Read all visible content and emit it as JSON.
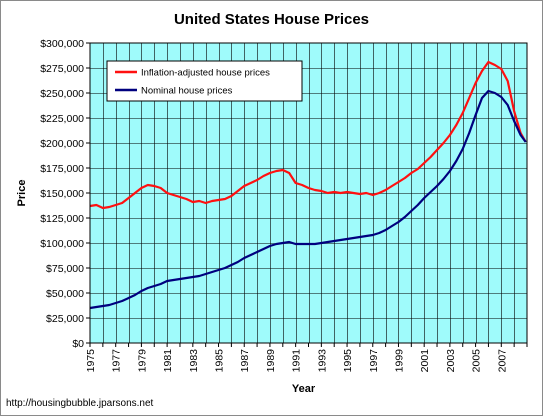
{
  "chart_data": {
    "type": "line",
    "title": "United States House Prices",
    "xlabel": "Year",
    "ylabel": "Price",
    "xlim": [
      1975,
      2009
    ],
    "ylim": [
      0,
      300000
    ],
    "y_ticks": [
      0,
      25000,
      50000,
      75000,
      100000,
      125000,
      150000,
      175000,
      200000,
      225000,
      250000,
      275000,
      300000
    ],
    "y_tick_labels": [
      "$0",
      "$25,000",
      "$50,000",
      "$75,000",
      "$100,000",
      "$125,000",
      "$150,000",
      "$175,000",
      "$200,000",
      "$225,000",
      "$250,000",
      "$275,000",
      "$300,000"
    ],
    "x_tick_labels": [
      "1975",
      "1977",
      "1979",
      "1981",
      "1983",
      "1985",
      "1987",
      "1989",
      "1991",
      "1993",
      "1995",
      "1997",
      "1999",
      "2001",
      "2003",
      "2005",
      "2007"
    ],
    "grid": true,
    "legend_position": "top-left",
    "plot_background": "#9ffbfb",
    "series": [
      {
        "name": "Inflation-adjusted house prices",
        "color": "#ff1010",
        "x": [
          1975,
          1975.5,
          1976,
          1976.5,
          1977,
          1977.5,
          1978,
          1978.5,
          1979,
          1979.5,
          1980,
          1980.5,
          1981,
          1981.5,
          1982,
          1982.5,
          1983,
          1983.5,
          1984,
          1984.5,
          1985,
          1985.5,
          1986,
          1986.5,
          1987,
          1987.5,
          1988,
          1988.5,
          1989,
          1989.5,
          1990,
          1990.5,
          1991,
          1991.5,
          1992,
          1992.5,
          1993,
          1993.5,
          1994,
          1994.5,
          1995,
          1995.5,
          1996,
          1996.5,
          1997,
          1997.5,
          1998,
          1998.5,
          1999,
          1999.5,
          2000,
          2000.5,
          2001,
          2001.5,
          2002,
          2002.5,
          2003,
          2003.5,
          2004,
          2004.5,
          2005,
          2005.5,
          2006,
          2006.5,
          2007,
          2007.5,
          2008,
          2008.5,
          2008.9
        ],
        "values": [
          137000,
          138000,
          135000,
          136000,
          138000,
          140000,
          145000,
          150000,
          155000,
          158000,
          157000,
          155000,
          150000,
          148000,
          146000,
          144000,
          141000,
          142000,
          140000,
          142000,
          143000,
          144000,
          147000,
          152000,
          157000,
          160000,
          163000,
          167000,
          170000,
          172000,
          173000,
          170000,
          160000,
          158000,
          155000,
          153000,
          152000,
          150000,
          151000,
          150000,
          151000,
          150000,
          149000,
          150000,
          148000,
          150000,
          153000,
          157000,
          161000,
          165000,
          170000,
          174000,
          180000,
          186000,
          193000,
          200000,
          208000,
          218000,
          230000,
          245000,
          260000,
          272000,
          281000,
          278000,
          274000,
          262000,
          232000,
          210000,
          201000
        ]
      },
      {
        "name": "Nominal house prices",
        "color": "#00007f",
        "x": [
          1975,
          1975.5,
          1976,
          1976.5,
          1977,
          1977.5,
          1978,
          1978.5,
          1979,
          1979.5,
          1980,
          1980.5,
          1981,
          1981.5,
          1982,
          1982.5,
          1983,
          1983.5,
          1984,
          1984.5,
          1985,
          1985.5,
          1986,
          1986.5,
          1987,
          1987.5,
          1988,
          1988.5,
          1989,
          1989.5,
          1990,
          1990.5,
          1991,
          1991.5,
          1992,
          1992.5,
          1993,
          1993.5,
          1994,
          1994.5,
          1995,
          1995.5,
          1996,
          1996.5,
          1997,
          1997.5,
          1998,
          1998.5,
          1999,
          1999.5,
          2000,
          2000.5,
          2001,
          2001.5,
          2002,
          2002.5,
          2003,
          2003.5,
          2004,
          2004.5,
          2005,
          2005.5,
          2006,
          2006.5,
          2007,
          2007.5,
          2008,
          2008.5,
          2008.9
        ],
        "values": [
          35000,
          36000,
          37000,
          38000,
          40000,
          42000,
          45000,
          48000,
          52000,
          55000,
          57000,
          59000,
          62000,
          63000,
          64000,
          65000,
          66000,
          67000,
          69000,
          71000,
          73000,
          75000,
          78000,
          81000,
          85000,
          88000,
          91000,
          94000,
          97000,
          99000,
          100000,
          101000,
          99000,
          99000,
          99000,
          99000,
          100000,
          101000,
          102000,
          103000,
          104000,
          105000,
          106000,
          107000,
          108000,
          110000,
          113000,
          117000,
          121000,
          126000,
          132000,
          138000,
          145000,
          151000,
          157000,
          164000,
          172000,
          182000,
          194000,
          210000,
          228000,
          245000,
          252000,
          250000,
          246000,
          238000,
          222000,
          208000,
          201000
        ]
      }
    ]
  },
  "footer": {
    "source_text": "http://housingbubble.jparsons.net"
  }
}
